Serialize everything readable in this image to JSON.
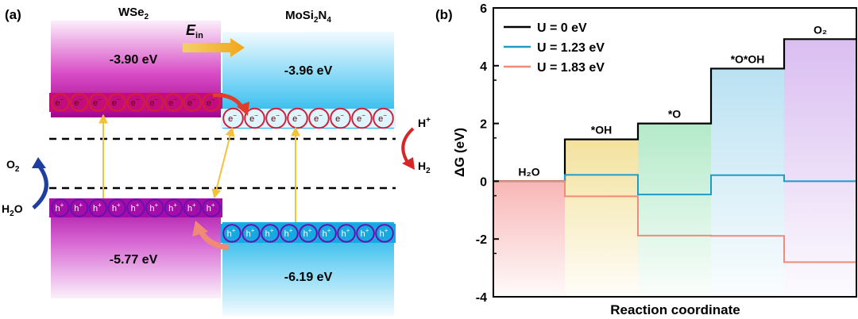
{
  "panel_a": {
    "label": "(a)",
    "left_material": {
      "name_main": "WSe",
      "name_sub": "2",
      "cb_energy": "-3.90 eV",
      "vb_energy": "-5.77 eV"
    },
    "right_material": {
      "name_parts": [
        "MoSi",
        "2",
        "N",
        "4"
      ],
      "cb_energy": "-3.96 eV",
      "vb_energy": "-6.19 eV"
    },
    "field_label_main": "E",
    "field_label_sub": "in",
    "electron_symbol": "e",
    "hole_symbol": "h",
    "left_electron_count": 9,
    "right_electron_count": 8,
    "left_hole_count": 9,
    "right_hole_count": 9,
    "reduction": {
      "reactant_main": "H",
      "reactant_sup": "+",
      "product_main": "H",
      "product_sub": "2"
    },
    "oxidation": {
      "reactant_main": "H",
      "reactant_sub": "2",
      "reactant_tail": "O",
      "product_main": "O",
      "product_sub": "2"
    },
    "colors": {
      "wse2_band": "#b0089a",
      "mosi2n4_band": "#12b5ec",
      "electron_ring": "#d0203a",
      "hole_ring": "#6a10b0",
      "arrow_yellow": "#f5c542",
      "arrow_red": "#e23a3a",
      "arrow_blue": "#1f3fa0"
    }
  },
  "panel_b": {
    "label": "(b)",
    "ylabel": "ΔG (eV)",
    "xlabel": "Reaction coordinate",
    "state_labels": [
      "H₂O",
      "*OH",
      "*O",
      "*O*OH",
      "O₂"
    ],
    "state_colors": [
      "#f7b3b3",
      "#f3e6a8",
      "#b9ecc9",
      "#bfe3f1",
      "#dcc2ef"
    ]
  },
  "chart_data": {
    "type": "line",
    "subtype": "step",
    "categories": [
      "H₂O",
      "*OH",
      "*O",
      "*O*OH",
      "O₂"
    ],
    "series": [
      {
        "name": "U = 0 eV",
        "values": [
          0,
          1.45,
          2.0,
          3.9,
          4.92
        ],
        "color": "#000000"
      },
      {
        "name": "U = 1.23 eV",
        "values": [
          0,
          0.22,
          -0.46,
          0.21,
          0.0
        ],
        "color": "#1f9bc4"
      },
      {
        "name": "U = 1.83 eV",
        "values": [
          0,
          -0.52,
          -1.88,
          -1.89,
          -2.8
        ],
        "color": "#ef8b76"
      }
    ],
    "ylabel": "ΔG (eV)",
    "xlabel": "Reaction coordinate",
    "ylim": [
      -4,
      6
    ],
    "yticks": [
      "6",
      "4",
      "2",
      "0",
      "-2",
      "-4"
    ],
    "legend_position": "top-left",
    "grid": false
  }
}
